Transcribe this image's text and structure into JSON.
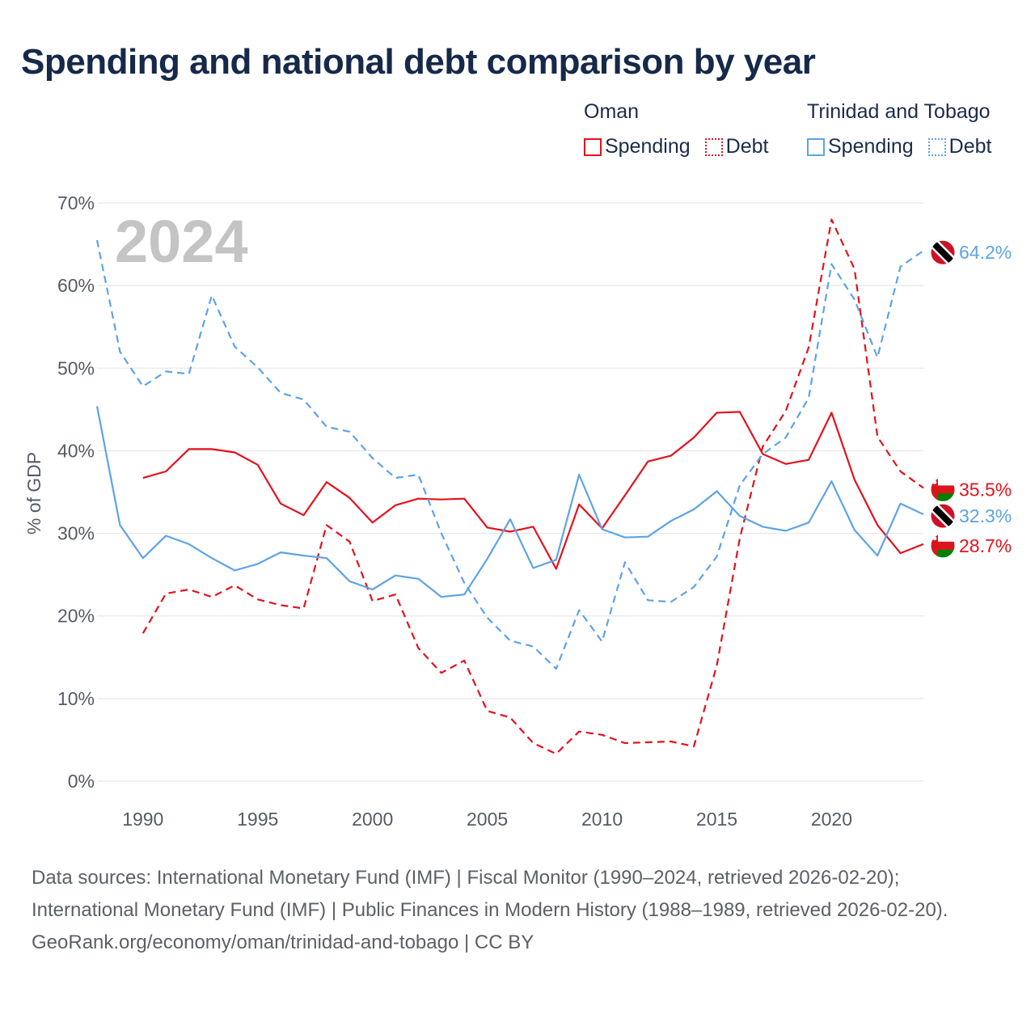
{
  "title": "Spending and national debt comparison by year",
  "legend": {
    "groups": [
      {
        "name": "Oman",
        "color": "#e3121c",
        "items": [
          {
            "label": "Spending",
            "style": "solid"
          },
          {
            "label": "Debt",
            "style": "dotted"
          }
        ]
      },
      {
        "name": "Trinidad and Tobago",
        "color": "#5da3e6",
        "items": [
          {
            "label": "Spending",
            "style": "solid"
          },
          {
            "label": "Debt",
            "style": "dotted"
          }
        ]
      }
    ]
  },
  "footer": {
    "sources": "Data sources: International Monetary Fund (IMF) | Fiscal Monitor (1990–2024, retrieved 2026-02-20); International Monetary Fund (IMF) | Public Finances in Modern History (1988–1989, retrieved 2026-02-20).",
    "credit": "GeoRank.org/economy/oman/trinidad-and-tobago | CC BY"
  },
  "chart_data": {
    "type": "line",
    "year_label": "2024",
    "ylabel": "% of GDP",
    "xlim": [
      1988,
      2024
    ],
    "ylim": [
      0,
      70
    ],
    "x_ticks": [
      1990,
      1995,
      2000,
      2005,
      2010,
      2015,
      2020
    ],
    "y_ticks": [
      {
        "value": 0,
        "label": "0%"
      },
      {
        "value": 10,
        "label": "10%"
      },
      {
        "value": 20,
        "label": "20%"
      },
      {
        "value": 30,
        "label": "30%"
      },
      {
        "value": 40,
        "label": "40%"
      },
      {
        "value": 50,
        "label": "50%"
      },
      {
        "value": 60,
        "label": "60%"
      },
      {
        "value": 70,
        "label": "70%"
      }
    ],
    "grid": true,
    "series": [
      {
        "name": "Oman Spending",
        "country": "Oman",
        "color": "#e3121c",
        "dash": "solid",
        "end_label": "28.7%",
        "x": [
          1990,
          1991,
          1992,
          1993,
          1994,
          1995,
          1996,
          1997,
          1998,
          1999,
          2000,
          2001,
          2002,
          2003,
          2004,
          2005,
          2006,
          2007,
          2008,
          2009,
          2010,
          2011,
          2012,
          2013,
          2014,
          2015,
          2016,
          2017,
          2018,
          2019,
          2020,
          2021,
          2022,
          2023,
          2024
        ],
        "values": [
          36.7,
          37.5,
          40.2,
          40.2,
          39.8,
          38.3,
          33.6,
          32.2,
          36.2,
          34.3,
          31.3,
          33.4,
          34.2,
          34.1,
          34.2,
          30.7,
          30.2,
          30.8,
          25.7,
          33.5,
          30.6,
          34.6,
          38.7,
          39.4,
          41.6,
          44.6,
          44.7,
          39.6,
          38.4,
          38.9,
          44.6,
          36.5,
          31.0,
          27.6,
          28.7
        ]
      },
      {
        "name": "Oman Debt",
        "country": "Oman",
        "color": "#e3121c",
        "dash": "dashed",
        "end_label": "35.5%",
        "x": [
          1990,
          1991,
          1992,
          1993,
          1994,
          1995,
          1996,
          1997,
          1998,
          1999,
          2000,
          2001,
          2002,
          2003,
          2004,
          2005,
          2006,
          2007,
          2008,
          2009,
          2010,
          2011,
          2012,
          2013,
          2014,
          2015,
          2016,
          2017,
          2018,
          2019,
          2020,
          2021,
          2022,
          2023,
          2024
        ],
        "values": [
          17.9,
          22.7,
          23.2,
          22.3,
          23.7,
          22.0,
          21.3,
          20.9,
          31.0,
          29.0,
          21.8,
          22.6,
          16.1,
          13.1,
          14.6,
          8.5,
          7.7,
          4.6,
          3.3,
          6.0,
          5.6,
          4.6,
          4.7,
          4.8,
          4.2,
          14.0,
          29.4,
          40.5,
          44.8,
          52.5,
          68.0,
          62.0,
          41.7,
          37.5,
          35.5
        ]
      },
      {
        "name": "Trinidad and Tobago Spending",
        "country": "Trinidad and Tobago",
        "color": "#5da3e6",
        "dash": "solid",
        "end_label": "32.3%",
        "x": [
          1988,
          1989,
          1990,
          1991,
          1992,
          1993,
          1994,
          1995,
          1996,
          1997,
          1998,
          1999,
          2000,
          2001,
          2002,
          2003,
          2004,
          2005,
          2006,
          2007,
          2008,
          2009,
          2010,
          2011,
          2012,
          2013,
          2014,
          2015,
          2016,
          2017,
          2018,
          2019,
          2020,
          2021,
          2022,
          2023,
          2024
        ],
        "values": [
          45.4,
          31.0,
          27.0,
          29.7,
          28.7,
          27.0,
          25.5,
          26.3,
          27.7,
          27.3,
          27.0,
          24.2,
          23.2,
          24.9,
          24.5,
          22.3,
          22.6,
          26.9,
          31.7,
          25.8,
          26.8,
          37.1,
          30.5,
          29.5,
          29.6,
          31.5,
          32.9,
          35.1,
          32.1,
          30.8,
          30.3,
          31.3,
          36.3,
          30.4,
          27.3,
          33.6,
          32.3
        ]
      },
      {
        "name": "Trinidad and Tobago Debt",
        "country": "Trinidad and Tobago",
        "color": "#5da3e6",
        "dash": "dashed",
        "end_label": "64.2%",
        "x": [
          1988,
          1989,
          1990,
          1991,
          1992,
          1993,
          1994,
          1995,
          1996,
          1997,
          1998,
          1999,
          2000,
          2001,
          2002,
          2003,
          2004,
          2005,
          2006,
          2007,
          2008,
          2009,
          2010,
          2011,
          2012,
          2013,
          2014,
          2015,
          2016,
          2017,
          2018,
          2019,
          2020,
          2021,
          2022,
          2023,
          2024
        ],
        "values": [
          65.5,
          52.0,
          47.8,
          49.6,
          49.3,
          58.8,
          52.6,
          50.1,
          47.0,
          46.2,
          42.9,
          42.3,
          39.1,
          36.7,
          37.1,
          30.0,
          24.0,
          19.8,
          17.0,
          16.3,
          13.6,
          20.7,
          16.9,
          26.5,
          21.9,
          21.7,
          23.5,
          27.2,
          35.8,
          39.6,
          41.6,
          46.4,
          62.6,
          58.3,
          51.3,
          62.3,
          64.2
        ]
      }
    ]
  }
}
